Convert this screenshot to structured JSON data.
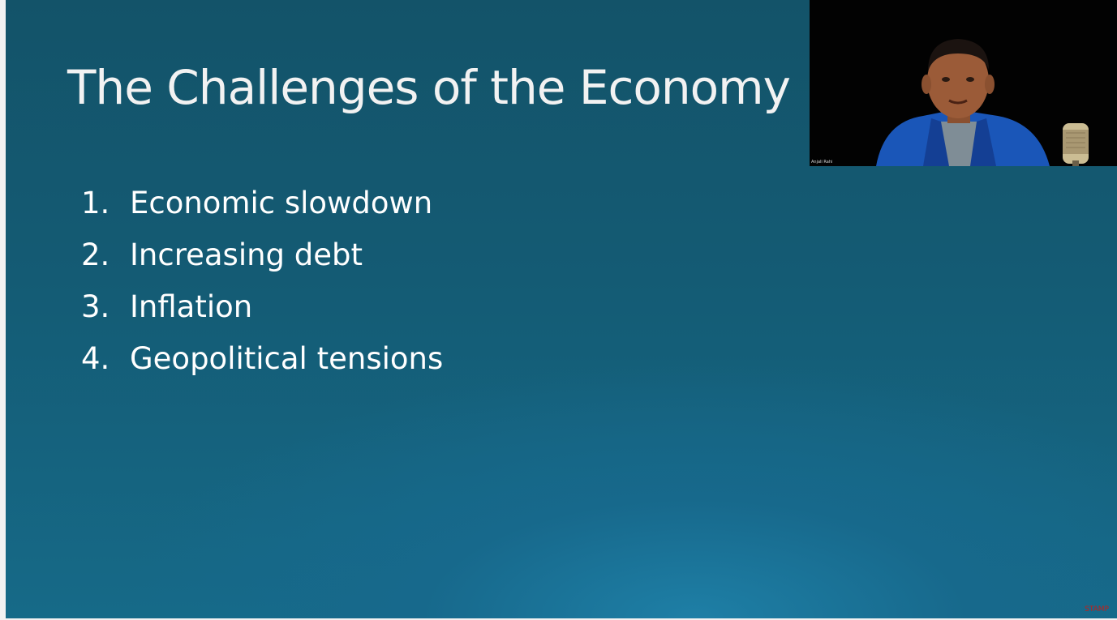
{
  "slide": {
    "title": "The Challenges of the Economy",
    "items": [
      {
        "number": "1.",
        "text": "Economic slowdown"
      },
      {
        "number": "2.",
        "text": "Increasing debt"
      },
      {
        "number": "3.",
        "text": "Inflation"
      },
      {
        "number": "4.",
        "text": "Geopolitical tensions"
      }
    ]
  },
  "webcam": {
    "presenter_name": "Anjali Rahi"
  },
  "watermark": "STAMP",
  "colors": {
    "slide_background": "#145b74",
    "title_text": "#f2f2f2",
    "body_text": "#ffffff",
    "webcam_background": "#020202",
    "blazer": "#1a56b8",
    "watermark": "#c0201a"
  }
}
